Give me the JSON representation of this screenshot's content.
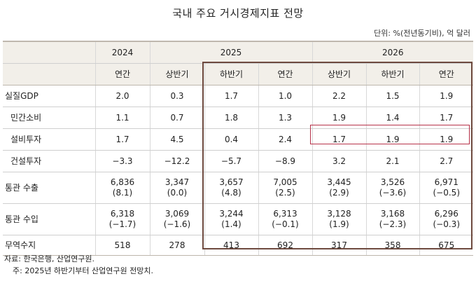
{
  "title": "국내 주요 거시경제지표 전망",
  "unit": "단위: %(전년동기비), 억 달러",
  "years": [
    "2024",
    "2025",
    "2026"
  ],
  "periods": [
    "연간",
    "상반기",
    "하반기",
    "연간",
    "상반기",
    "하반기",
    "연간"
  ],
  "rows": [
    {
      "label": "실질GDP",
      "cells": [
        "2.0",
        "0.3",
        "1.7",
        "1.0",
        "2.2",
        "1.5",
        "1.9"
      ]
    },
    {
      "label": "민간소비",
      "cells": [
        "1.1",
        "0.7",
        "1.8",
        "1.3",
        "1.9",
        "1.4",
        "1.7"
      ]
    },
    {
      "label": "설비투자",
      "cells": [
        "1.7",
        "4.5",
        "0.4",
        "2.4",
        "1.7",
        "1.9",
        "1.9"
      ]
    },
    {
      "label": "건설투자",
      "cells": [
        "−3.3",
        "−12.2",
        "−5.7",
        "−8.9",
        "3.2",
        "2.1",
        "2.7"
      ]
    },
    {
      "label": "통관 수출",
      "cells": [
        "6,836",
        "3,347",
        "3,657",
        "7,005",
        "3,445",
        "3,526",
        "6,971"
      ],
      "sub": [
        "(8.1)",
        "(0.0)",
        "(4.8)",
        "(2.5)",
        "(2.9)",
        "(−3.6)",
        "(−0.5)"
      ]
    },
    {
      "label": "통관 수입",
      "cells": [
        "6,318",
        "3,069",
        "3,244",
        "6,313",
        "3,128",
        "3,168",
        "6,296"
      ],
      "sub": [
        "(−1.7)",
        "(−1.6)",
        "(1.4)",
        "(−0.1)",
        "(1.9)",
        "(−2.3)",
        "(−0.3)"
      ]
    },
    {
      "label": "무역수지",
      "cells": [
        "518",
        "278",
        "413",
        "692",
        "317",
        "358",
        "675"
      ]
    }
  ],
  "notes": [
    "자료: 한국은행, 산업연구원.",
    "주: 2025년 하반기부터 산업연구원 전망치."
  ],
  "colors": {
    "header_bg": "#f2efe9",
    "forecast_frame": "#6e4a3f",
    "highlight": "#b7324a"
  }
}
